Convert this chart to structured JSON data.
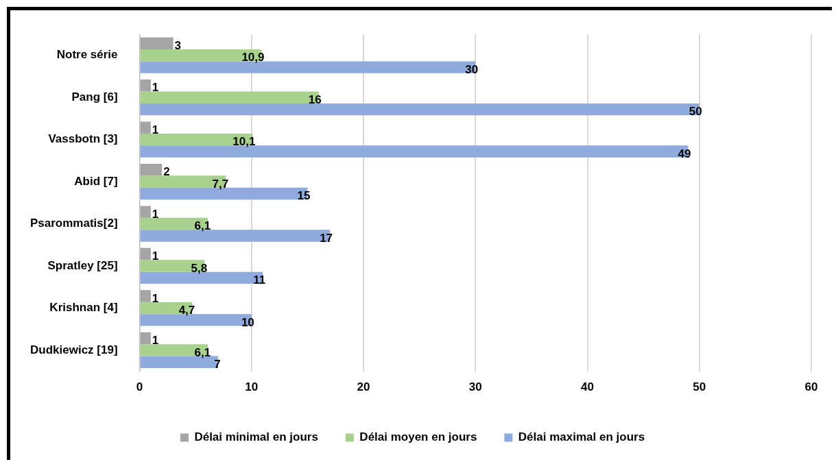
{
  "chart_data": {
    "type": "bar",
    "orientation": "horizontal",
    "categories": [
      "Notre série",
      "Pang [6]",
      "Vassbotn [3]",
      "Abid [7]",
      "Psarommatis[2]",
      "Spratley [25]",
      "Krishnan [4]",
      "Dudkiewicz [19]"
    ],
    "series": [
      {
        "name": "Délai minimal en jours",
        "color": "#a5a5a5",
        "values": [
          3,
          1,
          1,
          2,
          1,
          1,
          1,
          1
        ],
        "value_labels": [
          "3",
          "1",
          "1",
          "2",
          "1",
          "1",
          "1",
          "1"
        ]
      },
      {
        "name": "Délai moyen en jours",
        "color": "#a9d18e",
        "values": [
          10.9,
          16,
          10.1,
          7.7,
          6.1,
          5.8,
          4.7,
          6.1
        ],
        "value_labels": [
          "10,9",
          "16",
          "10,1",
          "7,7",
          "6,1",
          "5,8",
          "4,7",
          "6,1"
        ]
      },
      {
        "name": "Délai maximal en jours",
        "color": "#8faadc",
        "values": [
          30,
          50,
          49,
          15,
          17,
          11,
          10,
          7
        ],
        "value_labels": [
          "30",
          "50",
          "49",
          "15",
          "17",
          "11",
          "10",
          "7"
        ]
      }
    ],
    "xlim": [
      0,
      60
    ],
    "xticks": [
      0,
      10,
      20,
      30,
      40,
      50,
      60
    ],
    "grid": "x",
    "legend": "bottom"
  }
}
